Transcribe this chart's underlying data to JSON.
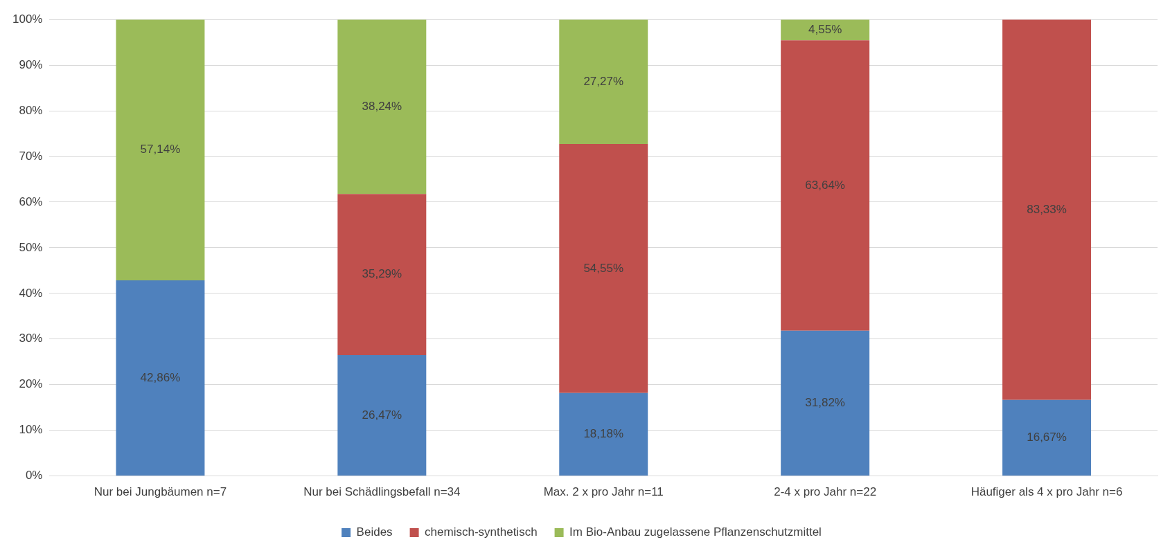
{
  "chart_data": {
    "type": "bar",
    "stacked": true,
    "categories": [
      "Nur bei Jungbäumen n=7",
      "Nur bei Schädlingsbefall n=34",
      "Max. 2 x pro Jahr n=11",
      "2-4 x pro Jahr n=22",
      "Häufiger als 4 x pro Jahr n=6"
    ],
    "series": [
      {
        "name": "Beides",
        "color": "#4f81bd",
        "values": [
          42.86,
          26.47,
          18.18,
          31.82,
          16.67
        ],
        "value_labels": [
          "42,86%",
          "26,47%",
          "18,18%",
          "31,82%",
          "16,67%"
        ]
      },
      {
        "name": "chemisch-synthetisch",
        "color": "#c0504d",
        "values": [
          null,
          35.29,
          54.55,
          63.64,
          83.33
        ],
        "value_labels": [
          null,
          "35,29%",
          "54,55%",
          "63,64%",
          "83,33%"
        ]
      },
      {
        "name": "Im Bio-Anbau zugelassene Pflanzenschutzmittel",
        "color": "#9bbb59",
        "values": [
          57.14,
          38.24,
          27.27,
          4.55,
          null
        ],
        "value_labels": [
          "57,14%",
          "38,24%",
          "27,27%",
          "4,55%",
          null
        ]
      }
    ],
    "ylim": [
      0,
      100
    ],
    "yticks": [
      {
        "value": 0,
        "label": "0%"
      },
      {
        "value": 10,
        "label": "10%"
      },
      {
        "value": 20,
        "label": "20%"
      },
      {
        "value": 30,
        "label": "30%"
      },
      {
        "value": 40,
        "label": "40%"
      },
      {
        "value": 50,
        "label": "50%"
      },
      {
        "value": 60,
        "label": "60%"
      },
      {
        "value": 70,
        "label": "70%"
      },
      {
        "value": 80,
        "label": "80%"
      },
      {
        "value": 90,
        "label": "90%"
      },
      {
        "value": 100,
        "label": "100%"
      }
    ],
    "grid": "y",
    "legend": "bottom"
  }
}
